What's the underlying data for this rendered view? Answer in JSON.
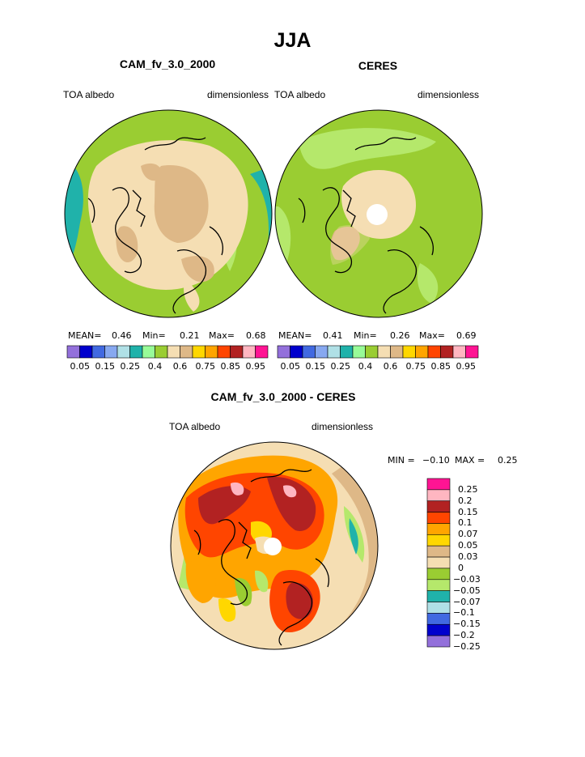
{
  "title": "JJA",
  "panels": [
    {
      "title": "CAM_fv_3.0_2000",
      "variable": "TOA albedo",
      "units": "dimensionless",
      "stats": {
        "mean_label": "MEAN=",
        "mean": "0.46",
        "min_label": "Min=",
        "min": "0.21",
        "max_label": "Max=",
        "max": "0.68"
      }
    },
    {
      "title": "CERES",
      "variable": "TOA albedo",
      "units": "dimensionless",
      "stats": {
        "mean_label": "MEAN=",
        "mean": "0.41",
        "min_label": "Min=",
        "min": "0.26",
        "max_label": "Max=",
        "max": "0.69"
      }
    }
  ],
  "colorbar_horizontal": {
    "colors": [
      "#9370db",
      "#0000cd",
      "#4169e1",
      "#87a8f0",
      "#b0e0e6",
      "#20b2aa",
      "#98fb98",
      "#9acd32",
      "#f5deb3",
      "#deb887",
      "#ffd700",
      "#ffa500",
      "#ff4500",
      "#b22222",
      "#ffb6c1",
      "#ff1493"
    ],
    "labels": [
      "0.05",
      "0.15",
      "0.25",
      "0.4",
      "0.6",
      "0.75",
      "0.85",
      "0.95"
    ]
  },
  "diff": {
    "title": "CAM_fv_3.0_2000 - CERES",
    "variable": "TOA albedo",
    "units": "dimensionless",
    "min_label": "MIN =",
    "min": "−0.10",
    "max_label": "MAX =",
    "max": "0.25"
  },
  "colorbar_vertical": {
    "colors": [
      "#ff1493",
      "#ffb6c1",
      "#b22222",
      "#ff4500",
      "#ffa500",
      "#ffd700",
      "#deb887",
      "#f5deb3",
      "#9acd32",
      "#b5e86b",
      "#20b2aa",
      "#b0e0e6",
      "#4169e1",
      "#0000cd",
      "#9370db"
    ],
    "labels": [
      "0.25",
      "0.2",
      "0.15",
      "0.1",
      "0.07",
      "0.05",
      "0.03",
      "0",
      "−0.03",
      "−0.05",
      "−0.07",
      "−0.1",
      "−0.15",
      "−0.2",
      "−0.25"
    ]
  },
  "colors": {
    "ocean_green": "#9acd32",
    "light_green": "#b5e86b",
    "wheat": "#f5deb3",
    "tan": "#deb887",
    "teal": "#20b2aa",
    "orange": "#ffa500",
    "red_orange": "#ff4500",
    "dark_red": "#b22222",
    "pink": "#ffb6c1",
    "gold": "#ffd700"
  }
}
